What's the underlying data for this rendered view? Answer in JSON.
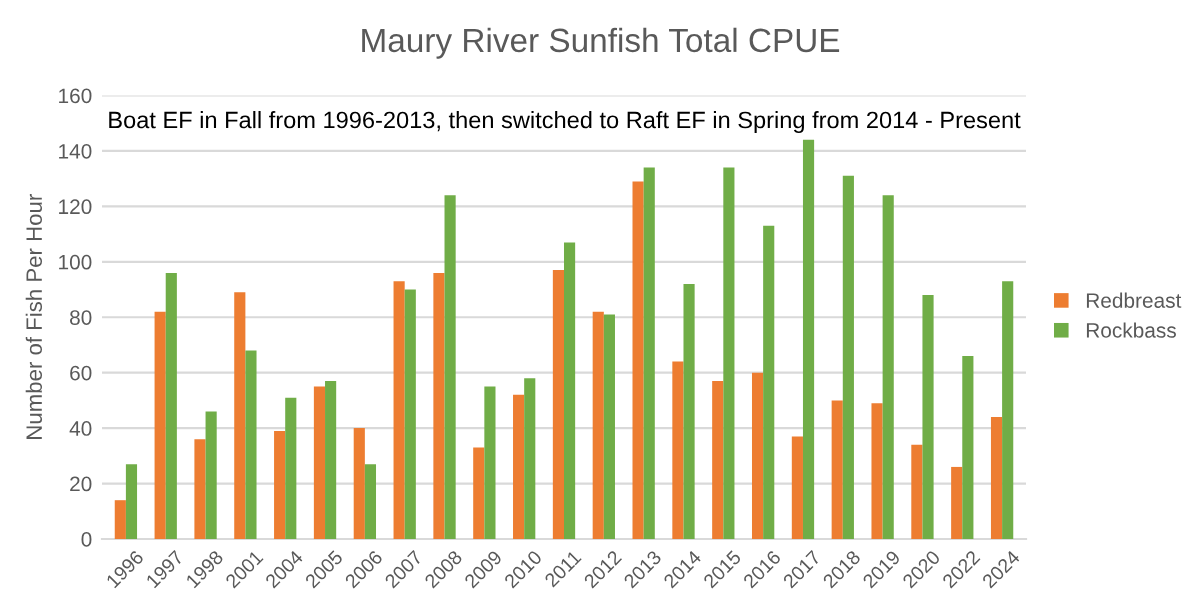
{
  "chart_data": {
    "type": "bar",
    "title": "Maury River Sunfish Total CPUE",
    "ylabel": "Number of Fish Per Hour",
    "annotations": [
      "Boat EF in Fall from 1996-2013, then switched to Raft EF in Spring from 2014 - Present"
    ],
    "categories": [
      "1996",
      "1997",
      "1998",
      "2001",
      "2004",
      "2005",
      "2006",
      "2007",
      "2008",
      "2009",
      "2010",
      "2011",
      "2012",
      "2013",
      "2014",
      "2015",
      "2016",
      "2017",
      "2018",
      "2019",
      "2020",
      "2022",
      "2024"
    ],
    "series": [
      {
        "name": "Redbreast",
        "color": "#ed7d31",
        "values": [
          14,
          82,
          36,
          89,
          39,
          55,
          40,
          93,
          96,
          33,
          52,
          97,
          82,
          129,
          64,
          57,
          60,
          37,
          50,
          49,
          34,
          26,
          44
        ]
      },
      {
        "name": "Rockbass",
        "color": "#70ad47",
        "values": [
          27,
          96,
          46,
          68,
          51,
          57,
          27,
          90,
          124,
          55,
          58,
          107,
          81,
          134,
          92,
          134,
          113,
          144,
          131,
          124,
          88,
          66,
          93
        ]
      }
    ],
    "ylim": [
      0,
      160
    ],
    "yticks": [
      0,
      20,
      40,
      60,
      80,
      100,
      120,
      140,
      160
    ],
    "grid": "y",
    "legend": "right"
  }
}
